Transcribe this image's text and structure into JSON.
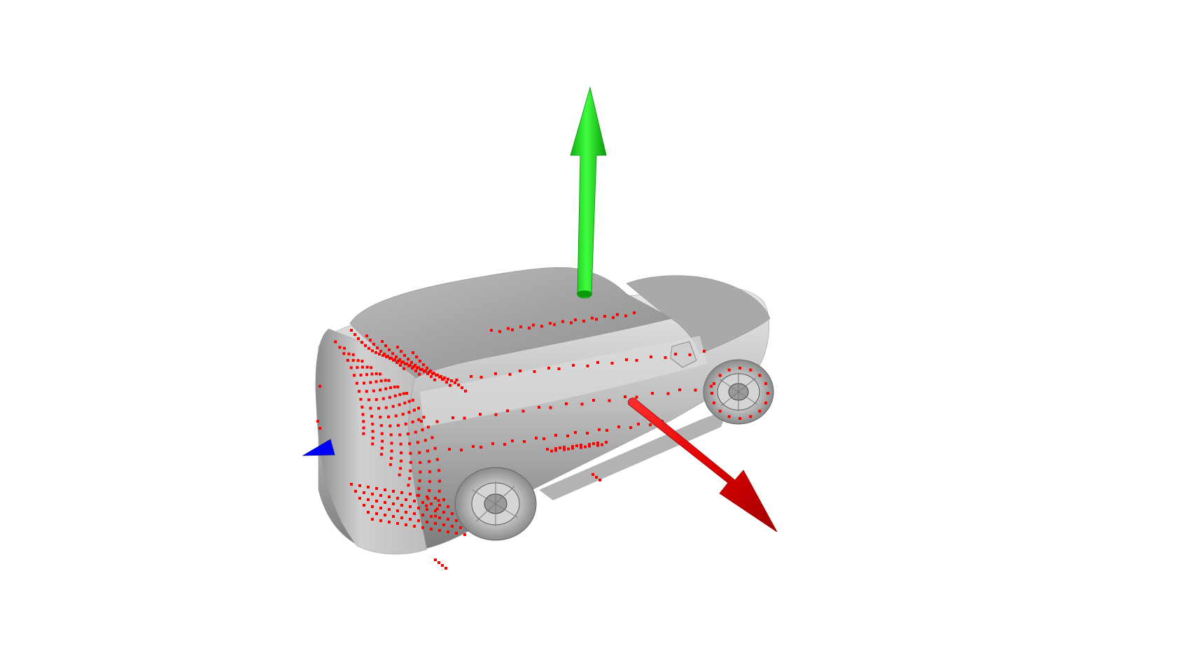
{
  "scene": {
    "background_color": "#ffffff",
    "model": {
      "object": "car",
      "shading_color_light": "#d9d9d9",
      "shading_color_mid": "#a8a8a8",
      "shading_color_dark": "#6e6e6e"
    },
    "point_cloud": {
      "color": "#ff0000"
    },
    "axes": {
      "x_color": "#ff0000",
      "y_color": "#00cc00",
      "z_color": "#0000ff",
      "x_icon": "red-arrow-icon",
      "y_icon": "green-arrow-icon",
      "z_icon": "blue-arrow-icon"
    }
  }
}
